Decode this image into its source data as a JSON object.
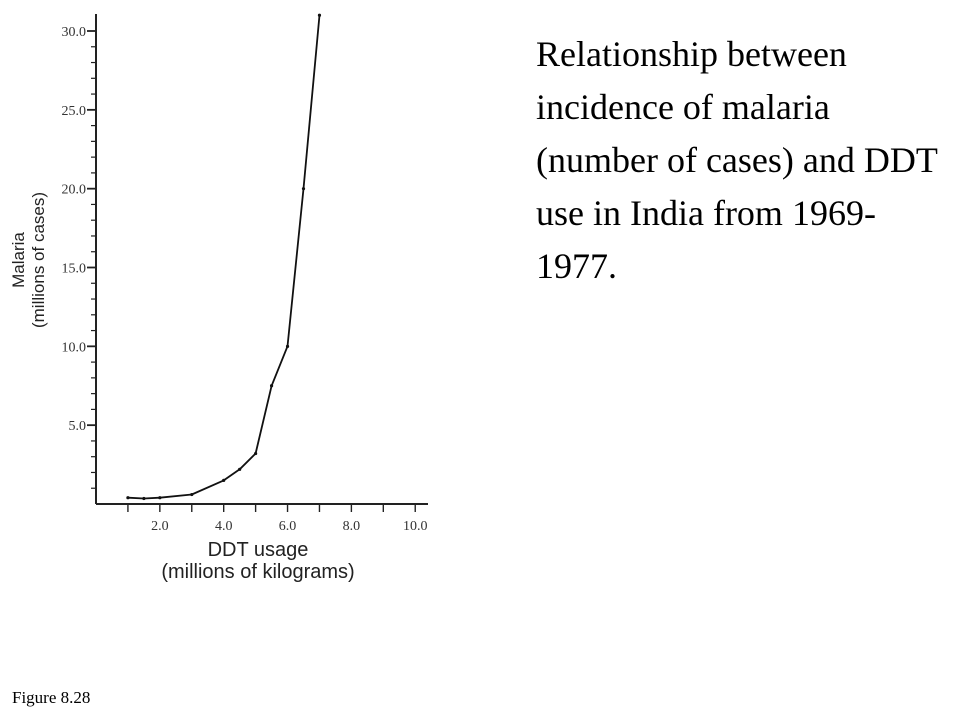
{
  "caption": "Relationship between incidence of malaria (number of cases) and DDT use in India from 1969-1977.",
  "figure_label": "Figure 8.28",
  "chart_data": {
    "type": "line",
    "title": "Relationship between incidence of malaria (number of cases) and DDT use in India from 1969-1977.",
    "xlabel": [
      "DDT usage",
      "(millions of kilograms)"
    ],
    "ylabel": [
      "Malaria",
      "(millions of cases)"
    ],
    "xlim": [
      0,
      10.4
    ],
    "ylim": [
      0,
      30.0
    ],
    "x_ticks": [
      "2.0",
      "4.0",
      "6.0",
      "8.0",
      "10.0"
    ],
    "y_ticks": [
      "5.0",
      "10.0",
      "15.0",
      "20.0",
      "25.0",
      "30.0"
    ],
    "series": [
      {
        "x": [
          1.0,
          1.5,
          2.0,
          3.0,
          4.0,
          4.5,
          5.0,
          5.5,
          6.0,
          6.5,
          7.0
        ],
        "y": [
          0.4,
          0.35,
          0.4,
          0.6,
          1.5,
          2.2,
          3.2,
          7.5,
          10.0,
          20.0,
          31.0
        ]
      }
    ],
    "grid": false,
    "colors": {
      "line": "#111111",
      "axis": "#222222"
    }
  }
}
